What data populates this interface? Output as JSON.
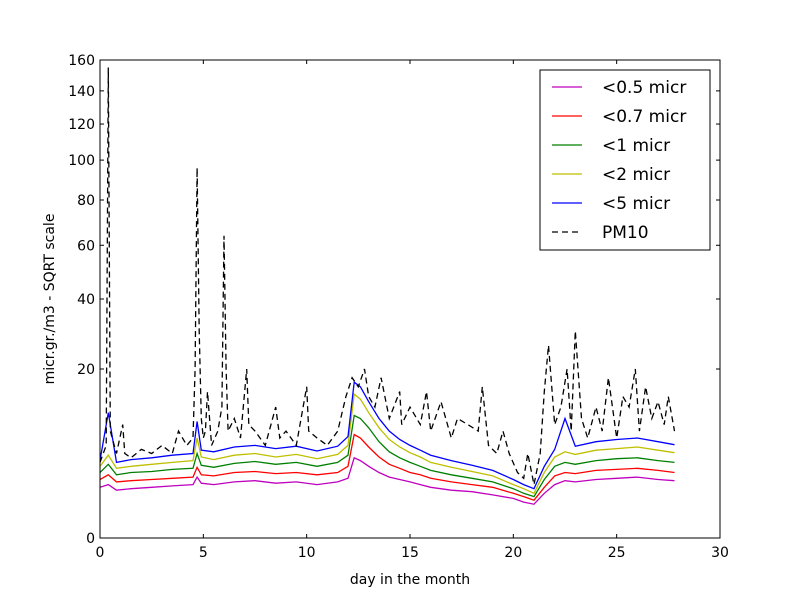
{
  "chart_data": {
    "type": "line",
    "title": "",
    "xlabel": "day in the month",
    "ylabel": "micr.gr./m3 - SQRT scale",
    "y_scale": "sqrt",
    "xlim": [
      0,
      30
    ],
    "ylim": [
      0,
      160
    ],
    "x_ticks": [
      0,
      5,
      10,
      15,
      20,
      25,
      30
    ],
    "x_tick_labels": [
      "0",
      "5",
      "10",
      "15",
      "20",
      "25",
      "30"
    ],
    "y_ticks": [
      0,
      20,
      40,
      60,
      80,
      100,
      120,
      140,
      160
    ],
    "y_tick_labels": [
      "0",
      "20",
      "40",
      "60",
      "80",
      "100",
      "120",
      "140",
      "160"
    ],
    "grid": false,
    "legend_position": "top-right",
    "series": [
      {
        "name": "<0.5 micr",
        "color": "#bf00bf",
        "dash": "solid",
        "x": [
          0,
          0.4,
          0.8,
          1.5,
          2.5,
          3.5,
          4.5,
          4.7,
          4.9,
          5.5,
          6.5,
          7.5,
          8.5,
          9.5,
          10.5,
          11.5,
          12.0,
          12.3,
          12.6,
          13.0,
          13.5,
          14.0,
          14.5,
          15.0,
          15.5,
          16.0,
          17.0,
          18.0,
          19.0,
          20.0,
          20.5,
          21.0,
          21.5,
          22.0,
          22.5,
          23.0,
          24.0,
          25.0,
          26.0,
          27.0,
          27.8
        ],
        "y": [
          1.8,
          2.0,
          1.6,
          1.7,
          1.8,
          1.9,
          2.0,
          2.6,
          2.1,
          2.0,
          2.2,
          2.3,
          2.1,
          2.2,
          2.0,
          2.2,
          2.5,
          4.5,
          4.2,
          3.6,
          3.0,
          2.6,
          2.4,
          2.2,
          2.0,
          1.8,
          1.6,
          1.5,
          1.3,
          1.1,
          0.9,
          0.8,
          1.4,
          2.0,
          2.3,
          2.2,
          2.4,
          2.5,
          2.6,
          2.4,
          2.3
        ]
      },
      {
        "name": "<0.7 micr",
        "color": "#ff0000",
        "dash": "solid",
        "x": [
          0,
          0.4,
          0.8,
          1.5,
          2.5,
          3.5,
          4.5,
          4.7,
          4.9,
          5.5,
          6.5,
          7.5,
          8.5,
          9.5,
          10.5,
          11.5,
          12.0,
          12.3,
          12.6,
          13.0,
          13.5,
          14.0,
          14.5,
          15.0,
          15.5,
          16.0,
          17.0,
          18.0,
          19.0,
          20.0,
          20.5,
          21.0,
          21.5,
          22.0,
          22.5,
          23.0,
          24.0,
          25.0,
          26.0,
          27.0,
          27.8
        ],
        "y": [
          2.4,
          2.8,
          2.2,
          2.3,
          2.4,
          2.5,
          2.6,
          3.5,
          2.8,
          2.7,
          3.0,
          3.1,
          2.9,
          3.0,
          2.8,
          3.0,
          3.6,
          7.5,
          7.0,
          5.8,
          4.6,
          3.8,
          3.4,
          3.0,
          2.8,
          2.5,
          2.2,
          2.0,
          1.8,
          1.4,
          1.2,
          1.0,
          1.8,
          2.7,
          3.0,
          2.9,
          3.2,
          3.3,
          3.4,
          3.2,
          3.0
        ]
      },
      {
        "name": "<1 micr",
        "color": "#008000",
        "dash": "solid",
        "x": [
          0,
          0.4,
          0.8,
          1.5,
          2.5,
          3.5,
          4.5,
          4.7,
          4.9,
          5.5,
          6.5,
          7.5,
          8.5,
          9.5,
          10.5,
          11.5,
          12.0,
          12.3,
          12.6,
          13.0,
          13.5,
          14.0,
          14.5,
          15.0,
          15.5,
          16.0,
          17.0,
          18.0,
          19.0,
          20.0,
          20.5,
          21.0,
          21.5,
          22.0,
          22.5,
          23.0,
          24.0,
          25.0,
          26.0,
          27.0,
          27.8
        ],
        "y": [
          3.0,
          3.8,
          2.8,
          3.0,
          3.1,
          3.3,
          3.4,
          5.0,
          3.7,
          3.5,
          3.9,
          4.1,
          3.8,
          4.0,
          3.6,
          4.0,
          4.8,
          10.5,
          10.0,
          8.5,
          6.5,
          5.2,
          4.5,
          4.0,
          3.6,
          3.2,
          2.8,
          2.5,
          2.2,
          1.7,
          1.4,
          1.2,
          2.4,
          3.6,
          4.0,
          3.8,
          4.2,
          4.4,
          4.5,
          4.2,
          4.0
        ]
      },
      {
        "name": "<2 micr",
        "color": "#bfbf00",
        "dash": "solid",
        "x": [
          0,
          0.4,
          0.8,
          1.5,
          2.5,
          3.5,
          4.5,
          4.7,
          4.9,
          5.5,
          6.5,
          7.5,
          8.5,
          9.5,
          10.5,
          11.5,
          12.0,
          12.3,
          12.6,
          13.0,
          13.5,
          14.0,
          14.5,
          15.0,
          15.5,
          16.0,
          17.0,
          18.0,
          19.0,
          20.0,
          20.5,
          21.0,
          21.5,
          22.0,
          22.5,
          23.0,
          24.0,
          25.0,
          26.0,
          27.0,
          27.8
        ],
        "y": [
          3.6,
          4.8,
          3.4,
          3.6,
          3.8,
          4.0,
          4.2,
          7.0,
          4.6,
          4.3,
          4.8,
          5.0,
          4.6,
          4.9,
          4.4,
          4.9,
          6.0,
          14.5,
          13.5,
          11.0,
          8.5,
          6.8,
          5.8,
          5.1,
          4.6,
          4.0,
          3.5,
          3.1,
          2.7,
          2.0,
          1.7,
          1.4,
          3.0,
          4.6,
          5.2,
          4.9,
          5.4,
          5.6,
          5.8,
          5.4,
          5.1
        ]
      },
      {
        "name": "<5 micr",
        "color": "#0000ff",
        "dash": "solid",
        "x": [
          0,
          0.4,
          0.8,
          1.5,
          2.5,
          3.5,
          4.5,
          4.7,
          4.9,
          5.5,
          6.5,
          7.5,
          8.5,
          9.5,
          10.5,
          11.5,
          12.0,
          12.3,
          12.6,
          13.0,
          13.5,
          14.0,
          14.5,
          15.0,
          15.5,
          16.0,
          17.0,
          18.0,
          19.0,
          20.0,
          20.5,
          21.0,
          21.5,
          22.0,
          22.5,
          23.0,
          24.0,
          25.0,
          26.0,
          27.0,
          27.8
        ],
        "y": [
          4.2,
          11.0,
          4.0,
          4.3,
          4.5,
          4.8,
          5.0,
          9.5,
          5.4,
          5.2,
          5.8,
          6.0,
          5.6,
          5.9,
          5.3,
          5.9,
          7.2,
          17.0,
          16.0,
          13.0,
          10.0,
          8.0,
          6.8,
          6.0,
          5.4,
          4.8,
          4.2,
          3.7,
          3.2,
          2.4,
          2.0,
          1.7,
          3.6,
          5.5,
          10.0,
          5.9,
          6.5,
          6.8,
          7.0,
          6.5,
          6.1
        ]
      },
      {
        "name": "PM10",
        "color": "#000000",
        "dash": "dashed",
        "x": [
          0,
          0.3,
          0.4,
          0.5,
          0.8,
          1.1,
          1.2,
          1.5,
          2.0,
          2.5,
          3.0,
          3.5,
          3.8,
          4.2,
          4.5,
          4.6,
          4.7,
          4.8,
          4.9,
          5.0,
          5.1,
          5.2,
          5.4,
          5.7,
          5.9,
          6.0,
          6.1,
          6.2,
          6.5,
          6.8,
          7.1,
          7.2,
          7.5,
          8.0,
          8.5,
          8.7,
          9.0,
          9.5,
          10.0,
          10.1,
          10.5,
          11.0,
          11.5,
          11.9,
          12.2,
          12.5,
          12.8,
          13.0,
          13.3,
          13.6,
          14.0,
          14.5,
          14.6,
          15.0,
          15.5,
          15.8,
          16.0,
          16.5,
          17.0,
          17.3,
          17.8,
          18.3,
          18.5,
          18.8,
          19.2,
          19.5,
          19.8,
          20.2,
          20.5,
          20.7,
          21.0,
          21.3,
          21.5,
          21.7,
          22.0,
          22.3,
          22.6,
          22.8,
          23.0,
          23.3,
          23.6,
          24.0,
          24.3,
          24.6,
          25.0,
          25.3,
          25.6,
          25.9,
          26.1,
          26.4,
          26.7,
          27.0,
          27.3,
          27.5,
          27.8
        ],
        "y": [
          4.0,
          6.0,
          155.0,
          8.0,
          5.0,
          9.0,
          5.0,
          4.5,
          5.5,
          5.0,
          6.0,
          5.0,
          8.0,
          6.0,
          7.0,
          20.0,
          96.0,
          30.0,
          10.0,
          7.0,
          8.0,
          15.0,
          6.0,
          8.0,
          12.0,
          64.0,
          20.0,
          8.0,
          10.0,
          7.0,
          20.0,
          9.0,
          8.0,
          6.0,
          12.0,
          7.0,
          8.0,
          6.0,
          16.0,
          8.0,
          7.0,
          6.0,
          8.0,
          14.0,
          18.0,
          16.0,
          20.0,
          14.0,
          12.0,
          18.0,
          10.0,
          15.0,
          9.0,
          12.0,
          9.0,
          15.0,
          8.0,
          13.0,
          7.0,
          10.0,
          9.0,
          8.0,
          16.0,
          6.0,
          5.0,
          8.0,
          5.0,
          3.0,
          2.5,
          5.0,
          2.0,
          5.0,
          15.0,
          26.0,
          9.0,
          12.0,
          20.0,
          8.0,
          30.0,
          10.0,
          7.0,
          12.0,
          8.0,
          18.0,
          7.0,
          14.0,
          12.0,
          20.0,
          8.0,
          16.0,
          10.0,
          13.0,
          9.0,
          14.0,
          8.0
        ]
      }
    ]
  }
}
